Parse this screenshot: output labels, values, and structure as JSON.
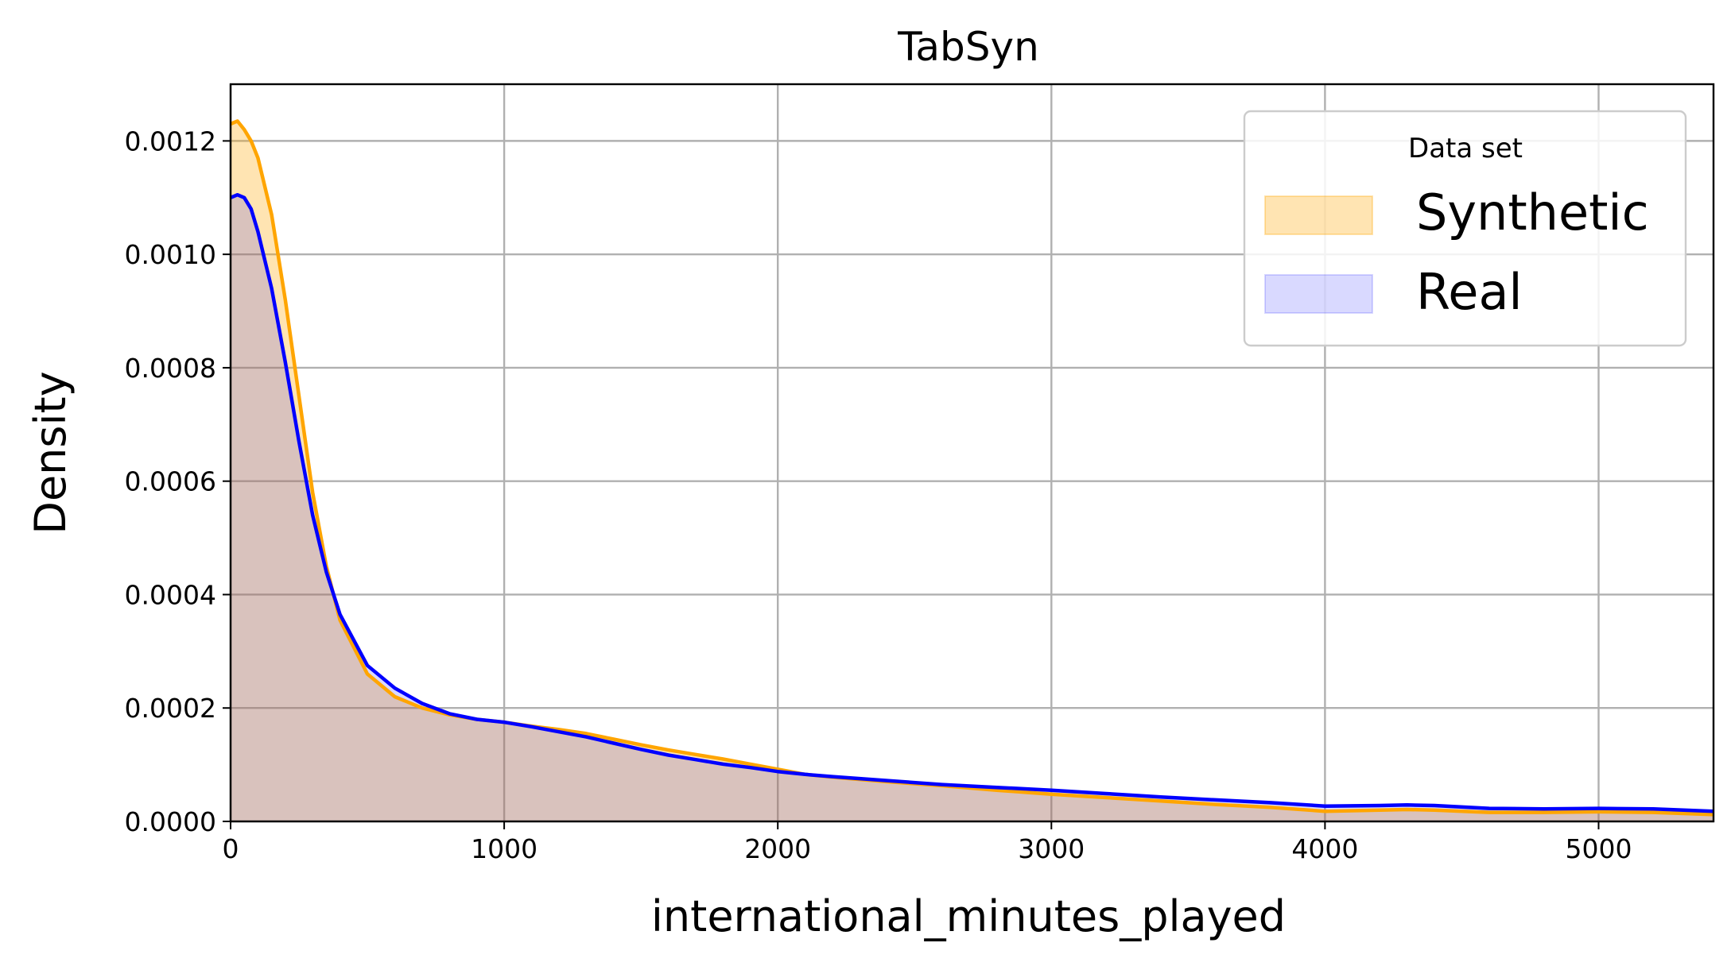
{
  "chart_data": {
    "type": "area",
    "title": "TabSyn",
    "xlabel": "international_minutes_played",
    "ylabel": "Density",
    "xlim": [
      0,
      5420
    ],
    "ylim": [
      0,
      0.0013
    ],
    "x_ticks": [
      0,
      1000,
      2000,
      3000,
      4000,
      5000
    ],
    "x_tick_labels": [
      "0",
      "1000",
      "2000",
      "3000",
      "4000",
      "5000"
    ],
    "y_ticks": [
      0,
      0.0002,
      0.0004,
      0.0006,
      0.0008,
      0.001,
      0.0012
    ],
    "y_tick_labels": [
      "0.0000",
      "0.0002",
      "0.0004",
      "0.0006",
      "0.0008",
      "0.0010",
      "0.0012"
    ],
    "grid": true,
    "legend": {
      "title": "Data set",
      "position": "upper right"
    },
    "series": [
      {
        "name": "Synthetic",
        "line_color": "#ffa500",
        "fill_color": "#ffa500",
        "fill_opacity": 0.3,
        "x": [
          0,
          25,
          50,
          75,
          100,
          150,
          200,
          250,
          300,
          350,
          400,
          500,
          600,
          700,
          800,
          900,
          1000,
          1100,
          1200,
          1300,
          1400,
          1500,
          1600,
          1700,
          1800,
          1900,
          2000,
          2100,
          2200,
          2400,
          2600,
          2800,
          3000,
          3200,
          3400,
          3600,
          3800,
          4000,
          4200,
          4300,
          4400,
          4600,
          4800,
          5000,
          5200,
          5420
        ],
        "y": [
          0.00123,
          0.001235,
          0.00122,
          0.0012,
          0.00117,
          0.00107,
          0.00092,
          0.00075,
          0.00058,
          0.00045,
          0.000355,
          0.00026,
          0.00022,
          0.0002,
          0.000188,
          0.00018,
          0.000175,
          0.000168,
          0.000162,
          0.000155,
          0.000145,
          0.000135,
          0.000126,
          0.000118,
          0.00011,
          0.000101,
          9.2e-05,
          8.3e-05,
          7.8e-05,
          7e-05,
          6.3e-05,
          5.5e-05,
          4.8e-05,
          4.2e-05,
          3.6e-05,
          3e-05,
          2.5e-05,
          1.8e-05,
          2e-05,
          2.1e-05,
          2e-05,
          1.6e-05,
          1.6e-05,
          1.7e-05,
          1.6e-05,
          1.2e-05
        ]
      },
      {
        "name": "Real",
        "line_color": "#0000ff",
        "fill_color": "#0000ff",
        "fill_opacity": 0.15,
        "x": [
          0,
          25,
          50,
          75,
          100,
          150,
          200,
          250,
          300,
          350,
          400,
          500,
          600,
          700,
          800,
          900,
          1000,
          1100,
          1200,
          1300,
          1400,
          1500,
          1600,
          1700,
          1800,
          1900,
          2000,
          2100,
          2200,
          2400,
          2600,
          2800,
          3000,
          3200,
          3400,
          3600,
          3800,
          4000,
          4200,
          4300,
          4400,
          4600,
          4800,
          5000,
          5200,
          5420
        ],
        "y": [
          0.0011,
          0.001105,
          0.0011,
          0.00108,
          0.00104,
          0.00094,
          0.00081,
          0.00067,
          0.00054,
          0.00044,
          0.000365,
          0.000275,
          0.000235,
          0.000208,
          0.00019,
          0.00018,
          0.000175,
          0.000167,
          0.000158,
          0.000149,
          0.000138,
          0.000127,
          0.000117,
          0.000109,
          0.000101,
          9.5e-05,
          8.8e-05,
          8.3e-05,
          7.9e-05,
          7.2e-05,
          6.5e-05,
          6e-05,
          5.5e-05,
          4.9e-05,
          4.3e-05,
          3.8e-05,
          3.3e-05,
          2.7e-05,
          2.8e-05,
          2.9e-05,
          2.8e-05,
          2.3e-05,
          2.2e-05,
          2.3e-05,
          2.2e-05,
          1.8e-05
        ]
      }
    ]
  }
}
